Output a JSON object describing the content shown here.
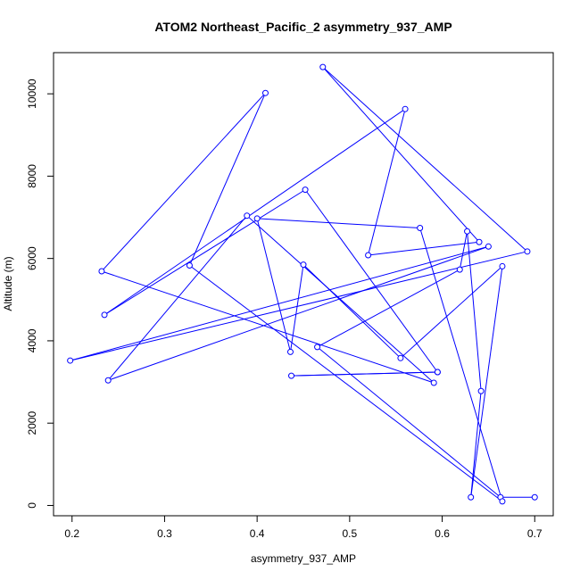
{
  "chart_data": {
    "type": "line",
    "title": "ATOM2 Northeast_Pacific_2 asymmetry_937_AMP",
    "xlabel": "asymmetry_937_AMP",
    "ylabel": "Altitude (m)",
    "xlim": [
      0.18,
      0.72
    ],
    "ylim": [
      -250,
      11000
    ],
    "xticks": [
      0.2,
      0.3,
      0.4,
      0.5,
      0.6,
      0.7
    ],
    "xtick_labels": [
      "0.2",
      "0.3",
      "0.4",
      "0.5",
      "0.6",
      "0.7"
    ],
    "yticks": [
      0,
      2000,
      4000,
      6000,
      8000,
      10000
    ],
    "ytick_labels": [
      "0",
      "2000",
      "4000",
      "6000",
      "8000",
      "10000"
    ],
    "grid": false,
    "series": [
      {
        "color": "#0000ff",
        "marker": "open-circle",
        "points": [
          {
            "x": 0.7,
            "y": 200
          },
          {
            "x": 0.663,
            "y": 200
          },
          {
            "x": 0.465,
            "y": 3850
          },
          {
            "x": 0.619,
            "y": 5730
          },
          {
            "x": 0.627,
            "y": 6660
          },
          {
            "x": 0.642,
            "y": 2780
          },
          {
            "x": 0.631,
            "y": 200
          },
          {
            "x": 0.665,
            "y": 5810
          },
          {
            "x": 0.555,
            "y": 3580
          },
          {
            "x": 0.45,
            "y": 5850
          },
          {
            "x": 0.436,
            "y": 3730
          },
          {
            "x": 0.4,
            "y": 6970
          },
          {
            "x": 0.576,
            "y": 6740
          },
          {
            "x": 0.665,
            "y": 100
          },
          {
            "x": 0.327,
            "y": 5830
          },
          {
            "x": 0.409,
            "y": 10020
          },
          {
            "x": 0.232,
            "y": 5690
          },
          {
            "x": 0.591,
            "y": 2980
          },
          {
            "x": 0.389,
            "y": 7040
          },
          {
            "x": 0.239,
            "y": 3040
          },
          {
            "x": 0.65,
            "y": 6290
          },
          {
            "x": 0.198,
            "y": 3520
          },
          {
            "x": 0.692,
            "y": 6170
          },
          {
            "x": 0.471,
            "y": 10650
          },
          {
            "x": 0.64,
            "y": 6400
          },
          {
            "x": 0.52,
            "y": 6080
          },
          {
            "x": 0.56,
            "y": 9630
          },
          {
            "x": 0.235,
            "y": 4630
          },
          {
            "x": 0.452,
            "y": 7670
          },
          {
            "x": 0.595,
            "y": 3240
          },
          {
            "x": 0.437,
            "y": 3150
          },
          {
            "x": 0.595,
            "y": 3240
          }
        ]
      }
    ]
  }
}
